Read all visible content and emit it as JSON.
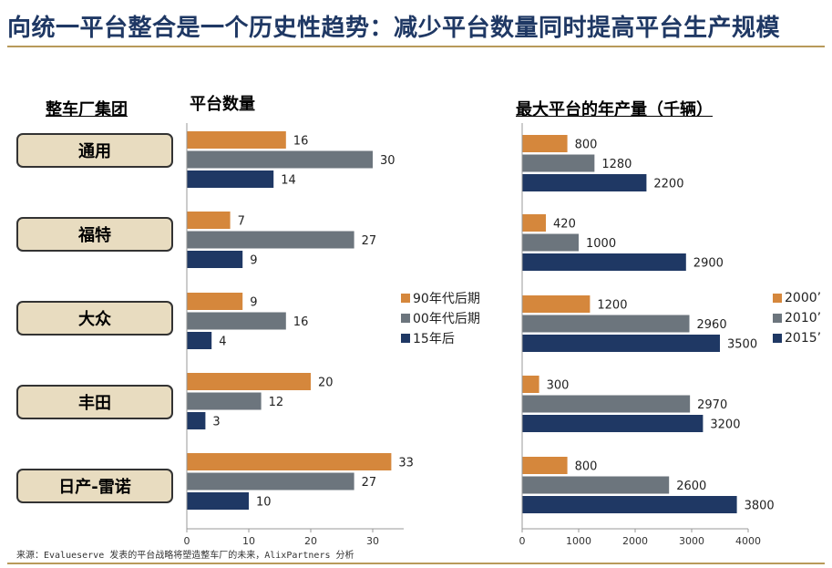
{
  "title": "向统一平台整合是一个历史性趋势：减少平台数量同时提高平台生产规模",
  "headers": {
    "group": "整车厂集团",
    "platforms": "平台数量",
    "volume": "最大平台的年产量（千辆）"
  },
  "groups": [
    "通用",
    "福特",
    "大众",
    "丰田",
    "日产-雷诺"
  ],
  "colors": {
    "orange": "#d5873c",
    "gray": "#6c757d",
    "navy": "#1f3864",
    "gold_rule": "#b89a5a"
  },
  "chart_data": [
    {
      "type": "bar",
      "orientation": "horizontal",
      "title": "平台数量",
      "categories": [
        "通用",
        "福特",
        "大众",
        "丰田",
        "日产-雷诺"
      ],
      "series": [
        {
          "name": "90年代后期",
          "values": [
            16,
            7,
            9,
            20,
            33
          ]
        },
        {
          "name": "00年代后期",
          "values": [
            30,
            27,
            16,
            12,
            27
          ]
        },
        {
          "name": "15年后",
          "values": [
            14,
            9,
            4,
            3,
            10
          ]
        }
      ],
      "xlim": [
        0,
        35
      ],
      "xticks": [
        0,
        10,
        20,
        30
      ],
      "legend": "right"
    },
    {
      "type": "bar",
      "orientation": "horizontal",
      "title": "最大平台的年产量（千辆）",
      "categories": [
        "通用",
        "福特",
        "大众",
        "丰田",
        "日产-雷诺"
      ],
      "series": [
        {
          "name": "2000’",
          "values": [
            800,
            420,
            1200,
            300,
            800
          ]
        },
        {
          "name": "2010’",
          "values": [
            1280,
            1000,
            2960,
            2970,
            2600
          ]
        },
        {
          "name": "2015’",
          "values": [
            2200,
            2900,
            3500,
            3200,
            3800
          ]
        }
      ],
      "xlim": [
        0,
        4000
      ],
      "xticks": [
        0,
        1000,
        2000,
        3000,
        4000
      ],
      "legend": "right"
    }
  ],
  "source": "来源：Evalueserve 发表的平台战略将塑造整车厂的未来，AlixPartners 分析"
}
